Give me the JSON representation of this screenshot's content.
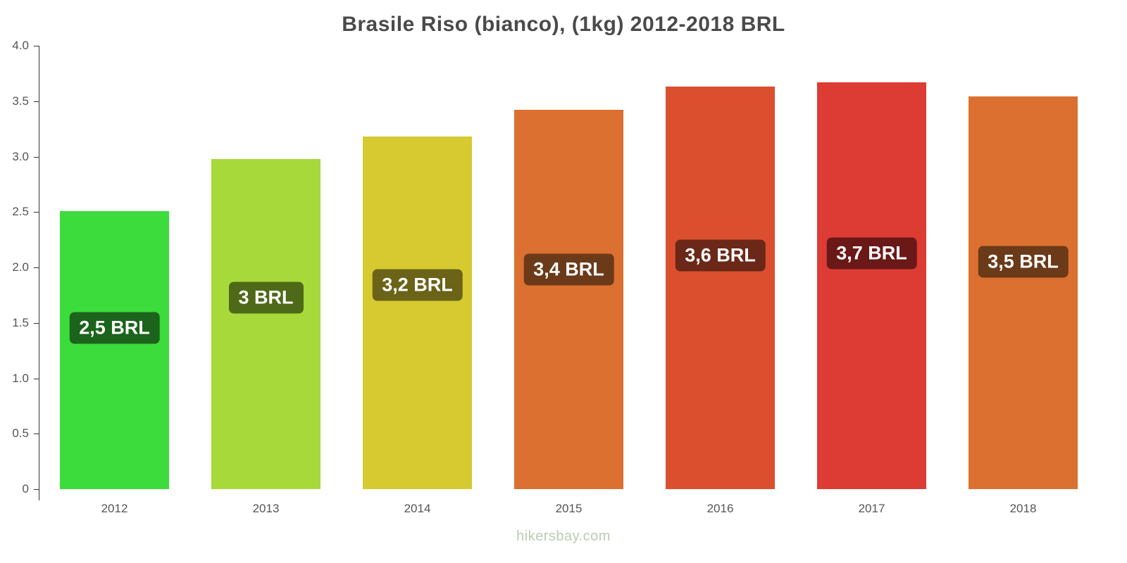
{
  "title": "Brasile Riso (bianco), (1kg) 2012-2018 BRL",
  "watermark": "hikersbay.com",
  "chart_data": {
    "type": "bar",
    "title": "Brasile Riso (bianco), (1kg) 2012-2018 BRL",
    "xlabel": "",
    "ylabel": "",
    "categories": [
      "2012",
      "2013",
      "2014",
      "2015",
      "2016",
      "2017",
      "2018"
    ],
    "values": [
      2.51,
      2.98,
      3.18,
      3.42,
      3.63,
      3.67,
      3.54
    ],
    "bar_labels": [
      "2,5 BRL",
      "3 BRL",
      "3,2 BRL",
      "3,4 BRL",
      "3,6 BRL",
      "3,7 BRL",
      "3,5 BRL"
    ],
    "bar_colors": [
      "#3cdc3c",
      "#a8d93a",
      "#d6ca30",
      "#dc7030",
      "#dc4f2e",
      "#dc3c34",
      "#dc7030"
    ],
    "label_bg_colors": [
      "#1c641c",
      "#4e6a18",
      "#6b6318",
      "#6b3a18",
      "#6b2818",
      "#6b1818",
      "#6b3a18"
    ],
    "ylim": [
      0,
      4
    ],
    "yticks": [
      0,
      0.5,
      1.0,
      1.5,
      2.0,
      2.5,
      3.0,
      3.5,
      4.0
    ],
    "ytick_labels": [
      "0",
      "0.5",
      "1.0",
      "1.5",
      "2.0",
      "2.5",
      "3.0",
      "3.5",
      "4.0"
    ],
    "grid": false,
    "legend": "none"
  }
}
